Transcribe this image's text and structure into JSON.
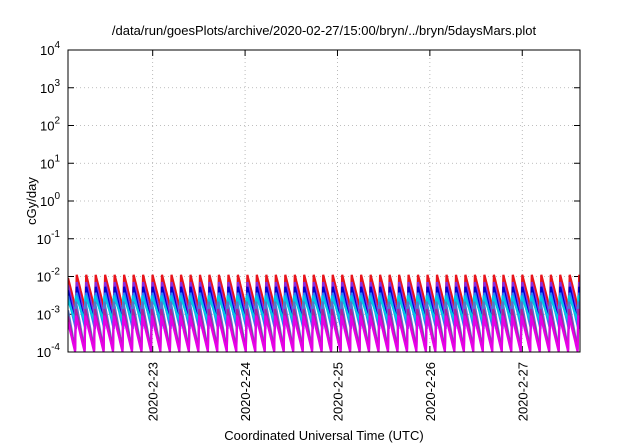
{
  "chart_data": {
    "type": "line",
    "title": "/data/run/goesPlots/archive/2020-02-27/15:00/bryn/../bryn/5daysMars.plot",
    "xlabel": "Coordinated Universal Time (UTC)",
    "ylabel": "cGy/day",
    "y_scale": "log",
    "ylim": [
      0.0001,
      10000
    ],
    "y_ticks": [
      {
        "value": 0.0001,
        "base": "10",
        "exp": "-4"
      },
      {
        "value": 0.001,
        "base": "10",
        "exp": "-3"
      },
      {
        "value": 0.01,
        "base": "10",
        "exp": "-2"
      },
      {
        "value": 0.1,
        "base": "10",
        "exp": "-1"
      },
      {
        "value": 1,
        "base": "10",
        "exp": "0"
      },
      {
        "value": 10,
        "base": "10",
        "exp": "1"
      },
      {
        "value": 100,
        "base": "10",
        "exp": "2"
      },
      {
        "value": 1000,
        "base": "10",
        "exp": "3"
      },
      {
        "value": 10000,
        "base": "10",
        "exp": "4"
      }
    ],
    "xlim": [
      "2020-02-22 02:00",
      "2020-02-27 15:00"
    ],
    "x_ticks": [
      {
        "label": "2020-2-23",
        "value": "2020-02-23 00:00"
      },
      {
        "label": "2020-2-24",
        "value": "2020-02-24 00:00"
      },
      {
        "label": "2020-2-25",
        "value": "2020-02-25 00:00"
      },
      {
        "label": "2020-2-26",
        "value": "2020-02-26 00:00"
      },
      {
        "label": "2020-2-27",
        "value": "2020-02-27 00:00"
      }
    ],
    "grid": true,
    "oscillation": {
      "cycles": 54,
      "phase": 0.1
    },
    "series": [
      {
        "color": "#e8141c",
        "peak": 0.0115,
        "trough": 0.00115,
        "phase": 0.0
      },
      {
        "color": "#8a2be2",
        "peak": 0.0078,
        "trough": 0.0007,
        "phase": 0.02
      },
      {
        "color": "#0000cc",
        "peak": 0.0062,
        "trough": 0.00045,
        "phase": 0.04
      },
      {
        "color": "#2a7fff",
        "peak": 0.0045,
        "trough": 0.0004,
        "phase": 0.06
      },
      {
        "color": "#00c8e6",
        "peak": 0.0032,
        "trough": 0.0006,
        "phase": 0.08
      },
      {
        "color": "#5577cc",
        "peak": 0.0024,
        "trough": 0.0001,
        "phase": 0.1
      },
      {
        "color": "#b41e9c",
        "peak": 0.0016,
        "trough": 0.0001,
        "phase": 0.12
      },
      {
        "color": "#e600e6",
        "peak": 0.0011,
        "trough": 0.0001,
        "phase": 0.14
      }
    ]
  }
}
